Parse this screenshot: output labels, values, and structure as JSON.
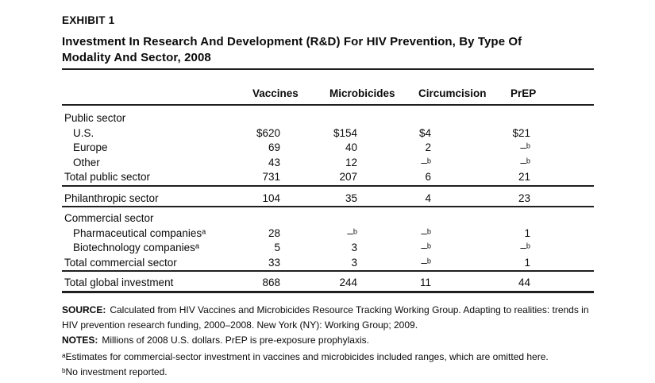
{
  "exhibit": {
    "label": "EXHIBIT 1",
    "title": "Investment In Research And Development (R&D) For HIV Prevention, By Type Of Modality And Sector, 2008"
  },
  "table": {
    "columns": [
      "Vaccines",
      "Microbicides",
      "Circumcision",
      "PrEP"
    ],
    "no_investment_marker": "–ᵇ",
    "sections": [
      {
        "rows": [
          {
            "label": "Public sector",
            "indent": 0,
            "values": [
              "",
              "",
              "",
              ""
            ]
          },
          {
            "label": "U.S.",
            "indent": 1,
            "values": [
              "$620",
              "$154",
              "$4",
              "$21"
            ]
          },
          {
            "label": "Europe",
            "indent": 1,
            "values": [
              "69",
              "40",
              "2",
              "–ᵇ"
            ]
          },
          {
            "label": "Other",
            "indent": 1,
            "values": [
              "43",
              "12",
              "–ᵇ",
              "–ᵇ"
            ]
          },
          {
            "label": "Total public sector",
            "indent": 0,
            "values": [
              "731",
              "207",
              "6",
              "21"
            ]
          }
        ]
      },
      {
        "rows": [
          {
            "label": "Philanthropic sector",
            "indent": 0,
            "values": [
              "104",
              "35",
              "4",
              "23"
            ]
          }
        ]
      },
      {
        "rows": [
          {
            "label": "Commercial sector",
            "indent": 0,
            "values": [
              "",
              "",
              "",
              ""
            ]
          },
          {
            "label": "Pharmaceutical companiesᵃ",
            "indent": 1,
            "values": [
              "28",
              "–ᵇ",
              "–ᵇ",
              "1"
            ]
          },
          {
            "label": "Biotechnology companiesᵃ",
            "indent": 1,
            "values": [
              "5",
              "3",
              "–ᵇ",
              "–ᵇ"
            ]
          },
          {
            "label": "Total commercial sector",
            "indent": 0,
            "values": [
              "33",
              "3",
              "–ᵇ",
              "1"
            ]
          }
        ]
      },
      {
        "rows": [
          {
            "label": "Total global investment",
            "indent": 0,
            "values": [
              "868",
              "244",
              "11",
              "44"
            ]
          }
        ]
      }
    ]
  },
  "footer": {
    "source_label": "SOURCE:",
    "source_text": "Calculated from HIV Vaccines and Microbicides Resource Tracking Working Group. Adapting to realities: trends in HIV prevention research funding, 2000–2008. New York (NY): Working Group; 2009.",
    "notes_label": "NOTES:",
    "notes_text": "Millions of 2008 U.S. dollars. PrEP is pre-exposure prophylaxis.",
    "footnote_a": "ᵃEstimates for commercial-sector investment in vaccines and microbicides included ranges, which are omitted here.",
    "footnote_b": "ᵇNo investment reported."
  },
  "colors": {
    "background": "#ffffff",
    "text": "#0a0a0a",
    "rule": "#1f1f1f"
  }
}
